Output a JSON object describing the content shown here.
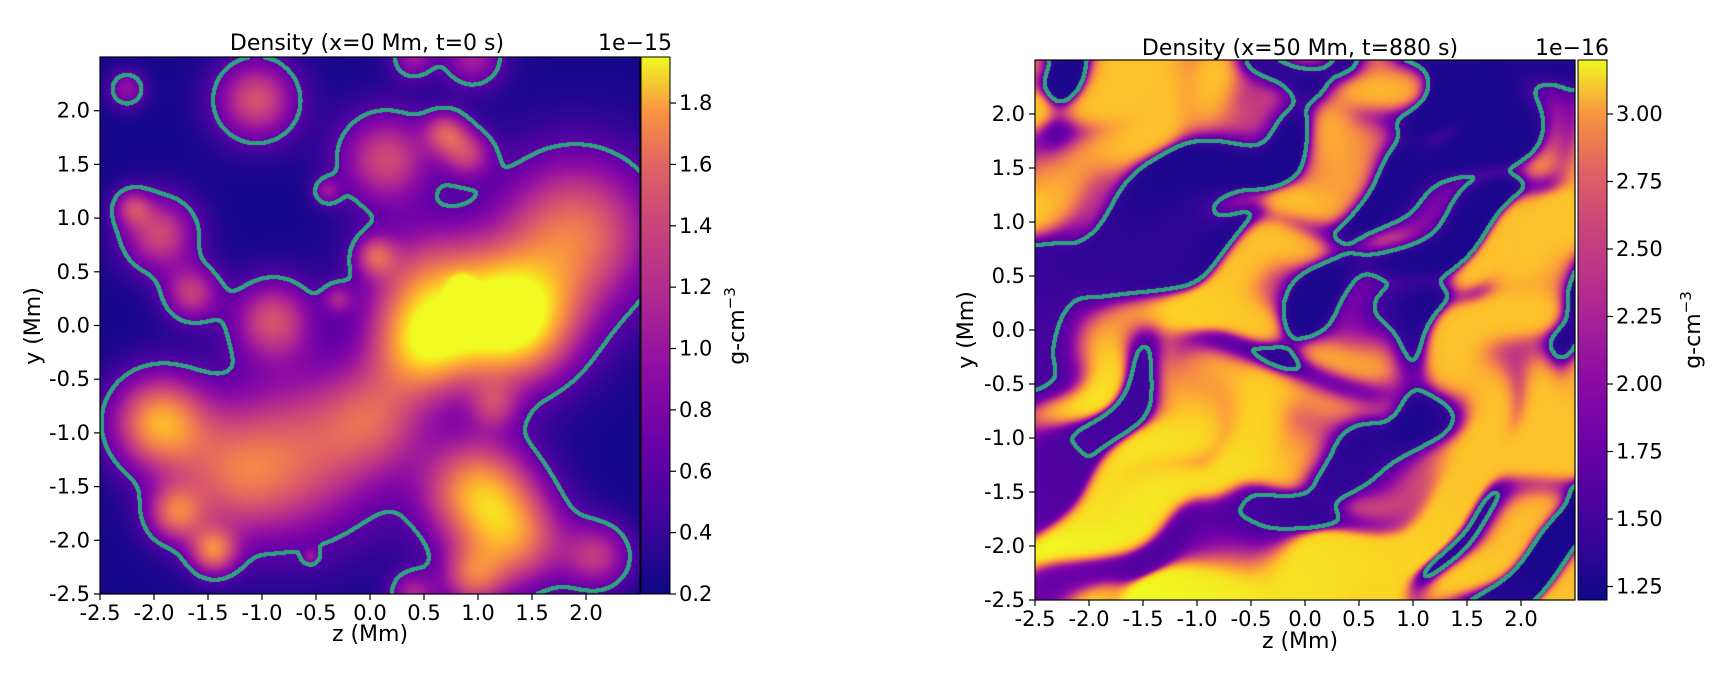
{
  "chart_data": [
    {
      "type": "heatmap",
      "title": "Density (x=0 Mm, t=0 s)",
      "xlabel": "z (Mm)",
      "ylabel": "y (Mm)",
      "xlim": [
        -2.5,
        2.5
      ],
      "ylim": [
        -2.5,
        2.5
      ],
      "x_ticks": [
        "-2.5",
        "-2.0",
        "-1.5",
        "-1.0",
        "-0.5",
        "0.0",
        "0.5",
        "1.0",
        "1.5",
        "2.0"
      ],
      "x_tick_values": [
        -2.5,
        -2.0,
        -1.5,
        -1.0,
        -0.5,
        0.0,
        0.5,
        1.0,
        1.5,
        2.0
      ],
      "y_ticks": [
        "2.0",
        "1.5",
        "1.0",
        "0.5",
        "0.0",
        "-0.5",
        "-1.0",
        "-1.5",
        "-2.0",
        "-2.5"
      ],
      "y_tick_values": [
        2.0,
        1.5,
        1.0,
        0.5,
        0.0,
        -0.5,
        -1.0,
        -1.5,
        -2.0,
        -2.5
      ],
      "colorbar": {
        "label": "g-cm",
        "label_exp": "−3",
        "exponent": "1e−15",
        "range": [
          0.2,
          1.95
        ],
        "ticks": [
          "1.8",
          "1.6",
          "1.4",
          "1.2",
          "1.0",
          "0.8",
          "0.6",
          "0.4",
          "0.2"
        ],
        "tick_values": [
          1.8,
          1.6,
          1.4,
          1.2,
          1.0,
          0.8,
          0.6,
          0.4,
          0.2
        ],
        "colormap": "plasma"
      },
      "contour_color": "#2fa37f",
      "blobs": [
        {
          "z": -2.25,
          "y": 2.2,
          "r": 0.12,
          "v": 0.5
        },
        {
          "z": -1.05,
          "y": 2.1,
          "r": 0.26,
          "v": 0.9
        },
        {
          "z": 0.4,
          "y": 2.5,
          "r": 0.14,
          "v": 0.55
        },
        {
          "z": 0.95,
          "y": 2.5,
          "r": 0.2,
          "v": 0.6
        },
        {
          "z": 0.15,
          "y": 1.55,
          "r": 0.3,
          "v": 0.85
        },
        {
          "z": 0.7,
          "y": 1.8,
          "r": 0.14,
          "v": 0.75
        },
        {
          "z": 0.9,
          "y": 1.6,
          "r": 0.16,
          "v": 0.7
        },
        {
          "z": -0.4,
          "y": 1.25,
          "r": 0.09,
          "v": 0.45
        },
        {
          "z": -2.2,
          "y": 1.1,
          "r": 0.12,
          "v": 0.6
        },
        {
          "z": -1.95,
          "y": 0.85,
          "r": 0.24,
          "v": 0.85
        },
        {
          "z": -1.65,
          "y": 0.3,
          "r": 0.18,
          "v": 0.75
        },
        {
          "z": 0.05,
          "y": 0.65,
          "r": 0.13,
          "v": 0.7
        },
        {
          "z": -0.9,
          "y": 0.05,
          "r": 0.26,
          "v": 0.85
        },
        {
          "z": -0.3,
          "y": 0.25,
          "r": 0.1,
          "v": 0.45
        },
        {
          "z": 0.55,
          "y": 0.35,
          "r": 0.4,
          "v": 0.95
        },
        {
          "z": 1.3,
          "y": 0.05,
          "r": 0.4,
          "v": 1.9
        },
        {
          "z": 0.85,
          "y": 0.35,
          "r": 0.07,
          "v": 1.1
        },
        {
          "z": 0.5,
          "y": -0.2,
          "r": 0.32,
          "v": 1.2
        },
        {
          "z": 1.9,
          "y": 0.85,
          "r": 0.5,
          "v": 1.1
        },
        {
          "z": 1.15,
          "y": -0.75,
          "r": 0.16,
          "v": 0.5
        },
        {
          "z": -1.95,
          "y": -0.9,
          "r": 0.3,
          "v": 1.3
        },
        {
          "z": -0.65,
          "y": -1.2,
          "r": 0.55,
          "v": 0.85
        },
        {
          "z": -1.3,
          "y": -1.4,
          "r": 0.4,
          "v": 0.7
        },
        {
          "z": 0.05,
          "y": -0.85,
          "r": 0.35,
          "v": 0.7
        },
        {
          "z": -1.8,
          "y": -1.75,
          "r": 0.18,
          "v": 0.9
        },
        {
          "z": -1.45,
          "y": -2.1,
          "r": 0.15,
          "v": 1.0
        },
        {
          "z": 1.0,
          "y": -1.55,
          "r": 0.35,
          "v": 1.3
        },
        {
          "z": 1.35,
          "y": -2.0,
          "r": 0.32,
          "v": 1.0
        },
        {
          "z": 0.95,
          "y": -2.35,
          "r": 0.2,
          "v": 0.8
        },
        {
          "z": 0.4,
          "y": -2.5,
          "r": 0.15,
          "v": 0.6
        },
        {
          "z": 2.1,
          "y": -2.15,
          "r": 0.22,
          "v": 0.7
        },
        {
          "z": -0.55,
          "y": -2.15,
          "r": 0.05,
          "v": 0.35
        }
      ]
    },
    {
      "type": "heatmap",
      "title": "Density (x=50 Mm, t=880 s)",
      "xlabel": "z (Mm)",
      "ylabel": "y (Mm)",
      "xlim": [
        -2.5,
        2.5
      ],
      "ylim": [
        -2.5,
        2.5
      ],
      "x_ticks": [
        "-2.5",
        "-2.0",
        "-1.5",
        "-1.0",
        "-0.5",
        "0.0",
        "0.5",
        "1.0",
        "1.5",
        "2.0"
      ],
      "x_tick_values": [
        -2.5,
        -2.0,
        -1.5,
        -1.0,
        -0.5,
        0.0,
        0.5,
        1.0,
        1.5,
        2.0
      ],
      "y_ticks": [
        "2.0",
        "1.5",
        "1.0",
        "0.5",
        "0.0",
        "-0.5",
        "-1.0",
        "-1.5",
        "-2.0",
        "-2.5"
      ],
      "y_tick_values": [
        2.0,
        1.5,
        1.0,
        0.5,
        0.0,
        -0.5,
        -1.0,
        -1.5,
        -2.0,
        -2.5
      ],
      "colorbar": {
        "label": "g-cm",
        "label_exp": "−3",
        "exponent": "1e−16",
        "range": [
          1.2,
          3.2
        ],
        "ticks": [
          "3.00",
          "2.75",
          "2.50",
          "2.25",
          "2.00",
          "1.75",
          "1.50",
          "1.25"
        ],
        "tick_values": [
          3.0,
          2.75,
          2.5,
          2.25,
          2.0,
          1.75,
          1.5,
          1.25
        ],
        "colormap": "plasma"
      },
      "contour_color": "#2fa37f",
      "field": "turbulent"
    }
  ]
}
